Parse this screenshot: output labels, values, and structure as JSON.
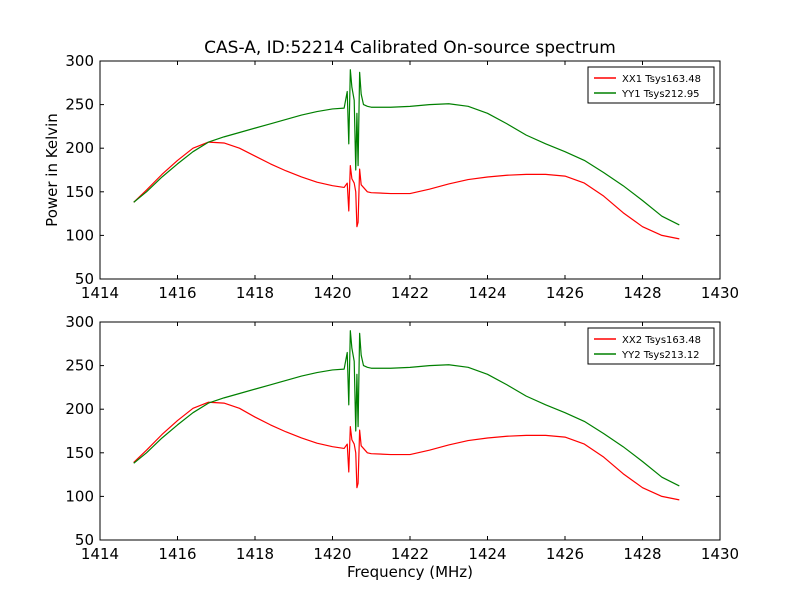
{
  "figure": {
    "title": "CAS-A, ID:52214 Calibrated On-source spectrum"
  },
  "chart_data": [
    {
      "type": "line",
      "title": "CAS-A, ID:52214 Calibrated On-source spectrum",
      "xlabel": "",
      "ylabel": "Power in Kelvin",
      "xlim": [
        1414,
        1430
      ],
      "ylim": [
        50,
        300
      ],
      "xticks": [
        1414,
        1416,
        1418,
        1420,
        1422,
        1424,
        1426,
        1428,
        1430
      ],
      "yticks": [
        50,
        100,
        150,
        200,
        250,
        300
      ],
      "legend_position": "top-right",
      "grid": false,
      "series": [
        {
          "name": "XX1 Tsys163.48",
          "color": "#ff0000",
          "x": [
            1414.87,
            1415.2,
            1415.6,
            1416.0,
            1416.4,
            1416.8,
            1417.2,
            1417.6,
            1418.0,
            1418.4,
            1418.8,
            1419.2,
            1419.6,
            1420.0,
            1420.3,
            1420.38,
            1420.42,
            1420.46,
            1420.5,
            1420.56,
            1420.6,
            1420.63,
            1420.66,
            1420.7,
            1420.74,
            1420.8,
            1420.9,
            1421.0,
            1421.5,
            1422.0,
            1422.5,
            1423.0,
            1423.5,
            1424.0,
            1424.5,
            1425.0,
            1425.5,
            1426.0,
            1426.5,
            1427.0,
            1427.5,
            1428.0,
            1428.5,
            1428.95
          ],
          "y": [
            138,
            152,
            170,
            186,
            200,
            207,
            206,
            200,
            191,
            182,
            174,
            167,
            161,
            157,
            155,
            160,
            128,
            180,
            165,
            160,
            150,
            110,
            115,
            176,
            158,
            155,
            150,
            149,
            148,
            148,
            153,
            159,
            164,
            167,
            169,
            170,
            170,
            168,
            160,
            145,
            126,
            110,
            100,
            96
          ]
        },
        {
          "name": "YY1 Tsys212.95",
          "color": "#008000",
          "x": [
            1414.87,
            1415.2,
            1415.6,
            1416.0,
            1416.4,
            1416.8,
            1417.2,
            1417.6,
            1418.0,
            1418.4,
            1418.8,
            1419.2,
            1419.6,
            1420.0,
            1420.3,
            1420.38,
            1420.42,
            1420.46,
            1420.5,
            1420.56,
            1420.6,
            1420.63,
            1420.66,
            1420.7,
            1420.74,
            1420.8,
            1420.9,
            1421.0,
            1421.5,
            1422.0,
            1422.5,
            1423.0,
            1423.5,
            1424.0,
            1424.5,
            1425.0,
            1425.5,
            1426.0,
            1426.5,
            1427.0,
            1427.5,
            1428.0,
            1428.5,
            1428.95
          ],
          "y": [
            138,
            150,
            167,
            182,
            196,
            207,
            213,
            218,
            223,
            228,
            233,
            238,
            242,
            245,
            246,
            265,
            205,
            290,
            270,
            255,
            175,
            240,
            180,
            287,
            262,
            250,
            248,
            247,
            247,
            248,
            250,
            251,
            248,
            240,
            228,
            215,
            205,
            196,
            186,
            172,
            157,
            140,
            122,
            112
          ]
        }
      ]
    },
    {
      "type": "line",
      "title": "",
      "xlabel": "Frequency (MHz)",
      "ylabel": "",
      "xlim": [
        1414,
        1430
      ],
      "ylim": [
        50,
        300
      ],
      "xticks": [
        1414,
        1416,
        1418,
        1420,
        1422,
        1424,
        1426,
        1428,
        1430
      ],
      "yticks": [
        50,
        100,
        150,
        200,
        250,
        300
      ],
      "legend_position": "top-right",
      "grid": false,
      "series": [
        {
          "name": "XX2 Tsys163.48",
          "color": "#ff0000",
          "x": [
            1414.87,
            1415.2,
            1415.6,
            1416.0,
            1416.4,
            1416.8,
            1417.2,
            1417.6,
            1418.0,
            1418.4,
            1418.8,
            1419.2,
            1419.6,
            1420.0,
            1420.3,
            1420.38,
            1420.42,
            1420.46,
            1420.5,
            1420.56,
            1420.6,
            1420.63,
            1420.66,
            1420.7,
            1420.74,
            1420.8,
            1420.9,
            1421.0,
            1421.5,
            1422.0,
            1422.5,
            1423.0,
            1423.5,
            1424.0,
            1424.5,
            1425.0,
            1425.5,
            1426.0,
            1426.5,
            1427.0,
            1427.5,
            1428.0,
            1428.5,
            1428.95
          ],
          "y": [
            139,
            153,
            171,
            187,
            201,
            208,
            207,
            201,
            191,
            182,
            174,
            167,
            161,
            157,
            155,
            160,
            128,
            180,
            165,
            160,
            150,
            110,
            115,
            176,
            158,
            155,
            150,
            149,
            148,
            148,
            153,
            159,
            164,
            167,
            169,
            170,
            170,
            168,
            160,
            145,
            126,
            110,
            100,
            96
          ]
        },
        {
          "name": "YY2 Tsys213.12",
          "color": "#008000",
          "x": [
            1414.87,
            1415.2,
            1415.6,
            1416.0,
            1416.4,
            1416.8,
            1417.2,
            1417.6,
            1418.0,
            1418.4,
            1418.8,
            1419.2,
            1419.6,
            1420.0,
            1420.3,
            1420.38,
            1420.42,
            1420.46,
            1420.5,
            1420.56,
            1420.6,
            1420.63,
            1420.66,
            1420.7,
            1420.74,
            1420.8,
            1420.9,
            1421.0,
            1421.5,
            1422.0,
            1422.5,
            1423.0,
            1423.5,
            1424.0,
            1424.5,
            1425.0,
            1425.5,
            1426.0,
            1426.5,
            1427.0,
            1427.5,
            1428.0,
            1428.5,
            1428.95
          ],
          "y": [
            138,
            150,
            167,
            182,
            196,
            207,
            213,
            218,
            223,
            228,
            233,
            238,
            242,
            245,
            246,
            265,
            205,
            290,
            270,
            255,
            175,
            240,
            180,
            287,
            262,
            250,
            248,
            247,
            247,
            248,
            250,
            251,
            248,
            240,
            228,
            215,
            205,
            196,
            186,
            172,
            157,
            140,
            122,
            112
          ]
        }
      ]
    }
  ]
}
